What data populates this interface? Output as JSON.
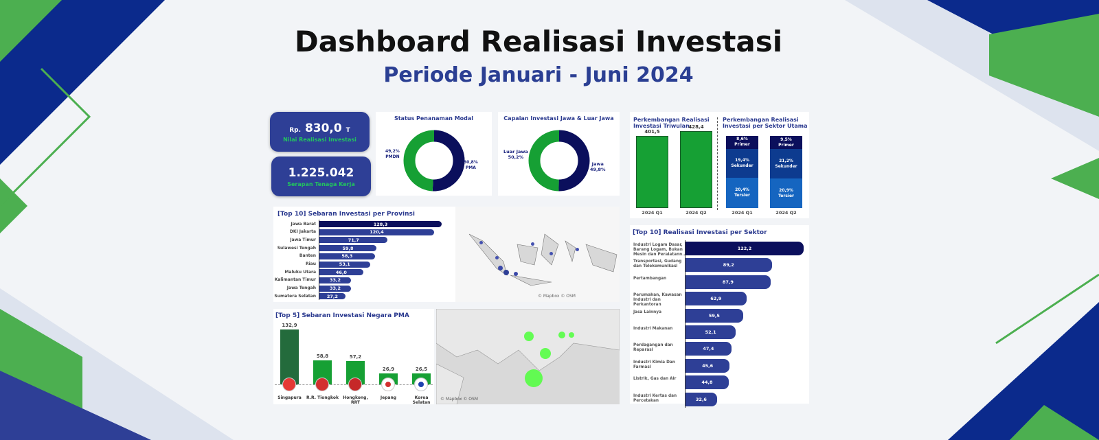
{
  "header": {
    "title": "Dashboard Realisasi Investasi",
    "subtitle": "Periode Januari - Juni 2024"
  },
  "colors": {
    "navy": "#0b0f5c",
    "blue": "#2e3f96",
    "green": "#16a034",
    "dark_green": "#236b3c",
    "bright_green": "#4cff3a"
  },
  "kpi": [
    {
      "prefix": "Rp.",
      "value": "830,0",
      "suffix": "T",
      "label": "Nilai Realisasi Investasi"
    },
    {
      "value": "1.225.042",
      "label": "Serapan Tenaga Kerja"
    }
  ],
  "donut_status": {
    "title": "Status Penanaman Modal",
    "slices": [
      {
        "name": "PMDN",
        "pct": "49,2%",
        "value": 49.2,
        "color": "#16a034"
      },
      {
        "name": "PMA",
        "pct": "50,8%",
        "value": 50.8,
        "color": "#0b0f5c"
      }
    ]
  },
  "donut_jawa": {
    "title": "Capaian Investasi Jawa & Luar Jawa",
    "slices": [
      {
        "name": "Jawa",
        "pct": "49,8%",
        "value": 49.8,
        "color": "#16a034"
      },
      {
        "name": "Luar Jawa",
        "pct": "50,2%",
        "value": 50.2,
        "color": "#0b0f5c"
      }
    ]
  },
  "chart_data": [
    {
      "type": "bar",
      "title": "Perkembangan Realisasi Investasi Triwulan",
      "categories": [
        "2024 Q1",
        "2024 Q2"
      ],
      "values": [
        401.5,
        428.4
      ],
      "labels": [
        "401,5",
        "428,4"
      ]
    },
    {
      "type": "bar",
      "stacked": true,
      "title": "Perkembangan Realisasi Investasi per Sektor Utama",
      "categories": [
        "2024 Q1",
        "2024 Q2"
      ],
      "series": [
        {
          "name": "Primer",
          "values": [
            8.6,
            9.5
          ],
          "labels": [
            "8,6%",
            "9,5%"
          ],
          "color": "#0b0f5c"
        },
        {
          "name": "Sekunder",
          "values": [
            19.4,
            21.2
          ],
          "labels": [
            "19,4%",
            "21,2%"
          ],
          "color": "#0d3b8f"
        },
        {
          "name": "Tersier",
          "values": [
            20.4,
            20.9
          ],
          "labels": [
            "20,4%",
            "20,9%"
          ],
          "color": "#1565c0"
        }
      ]
    },
    {
      "type": "bar",
      "orientation": "horizontal",
      "title": "[Top 10] Sebaran Investasi per Provinsi",
      "categories": [
        "Jawa Barat",
        "DKI Jakarta",
        "Jawa Timur",
        "Sulawesi Tengah",
        "Banten",
        "Riau",
        "Maluku Utara",
        "Kalimantan Timur",
        "Jawa Tengah",
        "Sumatera Selatan"
      ],
      "values": [
        128.3,
        120.4,
        71.7,
        59.8,
        58.3,
        53.1,
        46.0,
        33.2,
        33.2,
        27.2
      ],
      "labels": [
        "128,3",
        "120,4",
        "71,7",
        "59,8",
        "58,3",
        "53,1",
        "46,0",
        "33,2",
        "33,2",
        "27,2"
      ]
    },
    {
      "type": "bar",
      "title": "[Top 5] Sebaran Investasi Negara PMA",
      "categories": [
        "Singapura",
        "R.R. Tiongkok",
        "Hongkong, RRT",
        "Jepang",
        "Korea Selatan"
      ],
      "values": [
        132.9,
        58.8,
        57.2,
        26.9,
        26.5
      ],
      "labels": [
        "132,9",
        "58,8",
        "57,2",
        "26,9",
        "26,5"
      ]
    },
    {
      "type": "bar",
      "orientation": "horizontal",
      "title": "[Top 10] Realisasi Investasi per Sektor",
      "categories": [
        "Industri Logam Dasar, Barang Logam, Bukan Mesin dan Peralatann..",
        "Transportasi, Gudang dan Telekomunikasi",
        "Pertambangan",
        "Perumahan, Kawasan Industri dan Perkantoran",
        "Jasa Lainnya",
        "Industri Makanan",
        "Perdagangan dan Reparasi",
        "Industri Kimia Dan Farmasi",
        "Listrik, Gas dan Air",
        "Industri Kertas dan Percetakan"
      ],
      "values": [
        122.2,
        89.2,
        87.9,
        62.9,
        59.5,
        52.1,
        47.4,
        45.6,
        44.8,
        32.6
      ],
      "labels": [
        "122,2",
        "89,2",
        "87,9",
        "62,9",
        "59,5",
        "52,1",
        "47,4",
        "45,6",
        "44,8",
        "32,6"
      ]
    }
  ],
  "maps": {
    "attribution": "© Mapbox © OSM"
  }
}
